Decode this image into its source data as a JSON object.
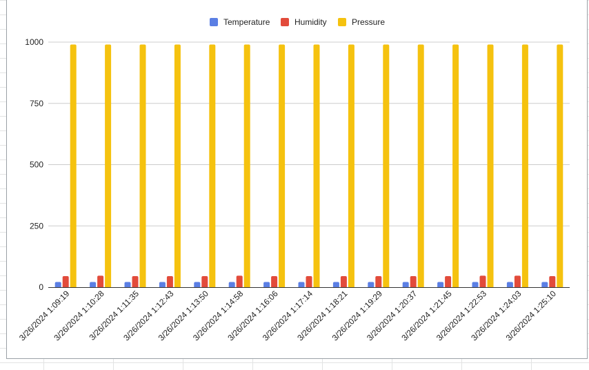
{
  "chart_data": {
    "type": "bar",
    "title": "",
    "xlabel": "",
    "ylabel": "",
    "ylim": [
      0,
      1000
    ],
    "yticks": [
      "0",
      "250",
      "500",
      "750",
      "1000"
    ],
    "yticks_values": [
      0,
      250,
      500,
      750,
      1000
    ],
    "grid": true,
    "legend_position": "top",
    "categories": [
      "3/26/2024 1:09:19",
      "3/26/2024 1:10:28",
      "3/26/2024 1:11:35",
      "3/26/2024 1:12:43",
      "3/26/2024 1:13:50",
      "3/26/2024 1:14:58",
      "3/26/2024 1:16:06",
      "3/26/2024 1:17:14",
      "3/26/2024 1:18:21",
      "3/26/2024 1:19:29",
      "3/26/2024 1:20:37",
      "3/26/2024 1:21:45",
      "3/26/2024 1:22:53",
      "3/26/2024 1:24:03",
      "3/26/2024 1:25:10"
    ],
    "series": [
      {
        "name": "Temperature",
        "color": "#5b7fe4",
        "values": [
          21,
          21,
          21,
          21,
          21,
          21,
          21,
          21,
          21,
          21,
          21,
          21,
          21,
          21,
          21
        ]
      },
      {
        "name": "Humidity",
        "color": "#e24b3b",
        "values": [
          45,
          47,
          45,
          45,
          45,
          47,
          45,
          45,
          45,
          45,
          45,
          45,
          47,
          47,
          45
        ]
      },
      {
        "name": "Pressure",
        "color": "#f5c20f",
        "values": [
          990,
          990,
          990,
          990,
          990,
          990,
          990,
          990,
          990,
          990,
          990,
          990,
          990,
          990,
          990
        ]
      }
    ]
  }
}
